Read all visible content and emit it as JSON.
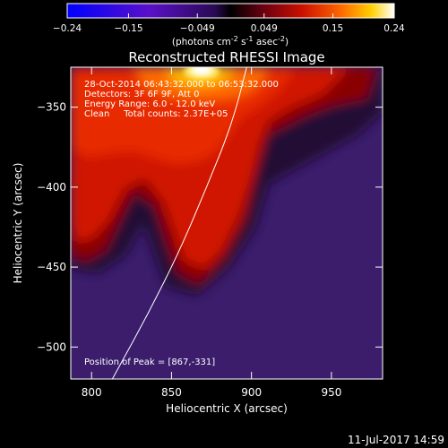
{
  "chart_data": {
    "type": "heatmap",
    "title": "Reconstructed RHESSI Image",
    "xlabel": "Heliocentric X (arcsec)",
    "ylabel": "Heliocentric Y (arcsec)",
    "xlim": [
      787,
      982
    ],
    "ylim": [
      -520,
      -325
    ],
    "x_ticks": [
      800,
      850,
      900,
      950
    ],
    "y_ticks": [
      -500,
      -450,
      -400,
      -350
    ],
    "colorbar": {
      "min": -0.24,
      "max": 0.24,
      "ticks": [
        -0.24,
        -0.15,
        -0.049,
        0.049,
        0.15,
        0.24
      ],
      "tick_labels": [
        "-0.24",
        "-0.15",
        "-0.049",
        "0.049",
        "0.15",
        "0.24"
      ],
      "label_main": "(photons cm",
      "label_sup1": "-2",
      "label_mid1": " s",
      "label_sup2": "-1",
      "label_mid2": " asec",
      "label_sup3": "-2",
      "label_end": ")"
    },
    "annotations": {
      "time": "28-Oct-2014 06:43:32.000 to 06:53:32.000",
      "detectors": "Detectors: 3F 6F 9F, Att 0",
      "energy": "Energy Range: 6.0 - 12.0 keV",
      "method": "Clean     Total counts: 2.37E+05",
      "peak": "Position of Peak = [867,-331]"
    },
    "peak": {
      "x": 867,
      "y": -331
    },
    "limb_curve": [
      [
        813,
        -520
      ],
      [
        835,
        -480
      ],
      [
        855,
        -440
      ],
      [
        872,
        -400
      ],
      [
        888,
        -360
      ],
      [
        897,
        -325
      ]
    ],
    "grid": false,
    "legend": "none"
  },
  "footer": {
    "timestamp": "11-Jul-2017 14:59"
  },
  "colors": {
    "background": "#000000",
    "limb": "#ffffff"
  }
}
